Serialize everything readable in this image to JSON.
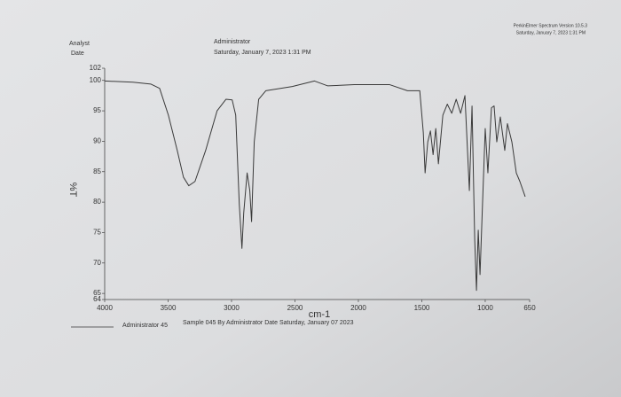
{
  "chart_data": {
    "type": "line",
    "header": [
      "PerkinElmer Spectrum Version 10.5.3",
      "Saturday, January 7, 2023 1:31 PM"
    ],
    "info_labels": [
      "Analyst",
      "Date"
    ],
    "info_values": [
      "Administrator",
      "Saturday, January 7, 2023 1:31 PM"
    ],
    "ylabel": "%T",
    "xlabel": "cm-1",
    "footer": [
      "Administrator 45",
      "Sample 045 By Administrator Date Saturday, January 07 2023"
    ],
    "xlim": [
      4000,
      650
    ],
    "xticks": [
      4000,
      3500,
      3000,
      2500,
      2000,
      1500,
      1000,
      650
    ],
    "ylim": [
      64,
      102
    ],
    "yticks": [
      64,
      65,
      70,
      75,
      80,
      85,
      90,
      95,
      100,
      102
    ],
    "x": [
      4000,
      3777,
      3637,
      3567,
      3498,
      3428,
      3379,
      3337,
      3288,
      3204,
      3114,
      3044,
      2995,
      2967,
      2939,
      2918,
      2904,
      2877,
      2856,
      2842,
      2821,
      2786,
      2730,
      2521,
      2346,
      2241,
      2032,
      1753,
      1613,
      1516,
      1488,
      1474,
      1453,
      1432,
      1411,
      1390,
      1369,
      1334,
      1299,
      1264,
      1229,
      1194,
      1160,
      1125,
      1104,
      1083,
      1069,
      1055,
      1041,
      1020,
      1000,
      979,
      951,
      930,
      909,
      881,
      846,
      825,
      790,
      755,
      727,
      685
    ],
    "series": [
      {
        "color": "#3a3a3a",
        "values": [
          99.9,
          99.7,
          99.4,
          98.7,
          94.3,
          88.5,
          84.1,
          82.7,
          83.4,
          88.5,
          95.0,
          96.9,
          96.8,
          94.3,
          79.7,
          72.4,
          78.2,
          84.8,
          81.9,
          76.8,
          89.9,
          96.9,
          98.3,
          99.0,
          99.9,
          99.1,
          99.3,
          99.3,
          98.3,
          98.3,
          91.4,
          84.8,
          89.9,
          91.7,
          87.8,
          92.1,
          86.3,
          94.3,
          96.1,
          94.6,
          96.9,
          94.6,
          97.5,
          81.9,
          95.8,
          73.9,
          65.5,
          75.4,
          68.1,
          80.5,
          92.1,
          84.8,
          95.5,
          95.8,
          89.9,
          94.0,
          88.5,
          92.9,
          89.9,
          84.8,
          83.4,
          80.9
        ]
      }
    ]
  }
}
